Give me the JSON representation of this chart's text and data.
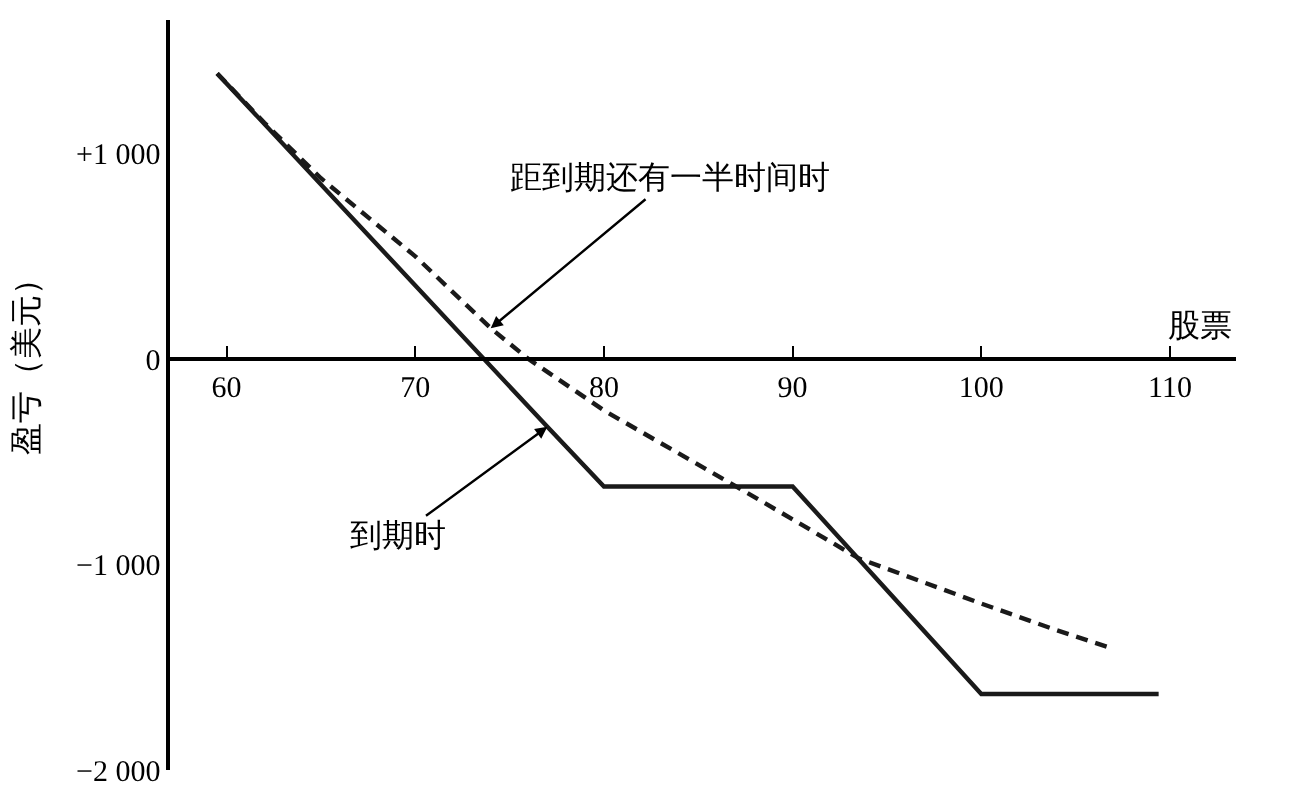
{
  "chart_data": {
    "type": "line",
    "xlabel": "股票",
    "ylabel": "盈亏（美元）",
    "xlim": [
      57,
      113.5
    ],
    "ylim": [
      -2000,
      1650
    ],
    "xticks": [
      60,
      70,
      80,
      90,
      100,
      110
    ],
    "yticks": [
      {
        "value": 1000,
        "label": "+1 000"
      },
      0,
      {
        "value": -1000,
        "label": "−1 000"
      },
      {
        "value": -2000,
        "label": "−2 000"
      }
    ],
    "marker": "none",
    "series": [
      {
        "color": "#1a1a1a",
        "line_style": "solid",
        "x": [
          59.5,
          77,
          80,
          90,
          100,
          109.4
        ],
        "values": [
          1390,
          -330,
          -620,
          -620,
          -1630,
          -1630
        ]
      },
      {
        "color": "#1a1a1a",
        "line_style": "dashed",
        "x": [
          59.5,
          62,
          65,
          70,
          74,
          76,
          80,
          87,
          90,
          93.5,
          100,
          104,
          107
        ],
        "values": [
          1390,
          1150,
          880,
          500,
          150,
          0,
          -250,
          -620,
          -780,
          -970,
          -1190,
          -1320,
          -1410
        ]
      }
    ],
    "annotations": [
      {
        "text": "距到期还有一半时间时",
        "x": 74,
        "y": 150
      },
      {
        "text": "到期时",
        "x": 77,
        "y": -330
      }
    ]
  }
}
